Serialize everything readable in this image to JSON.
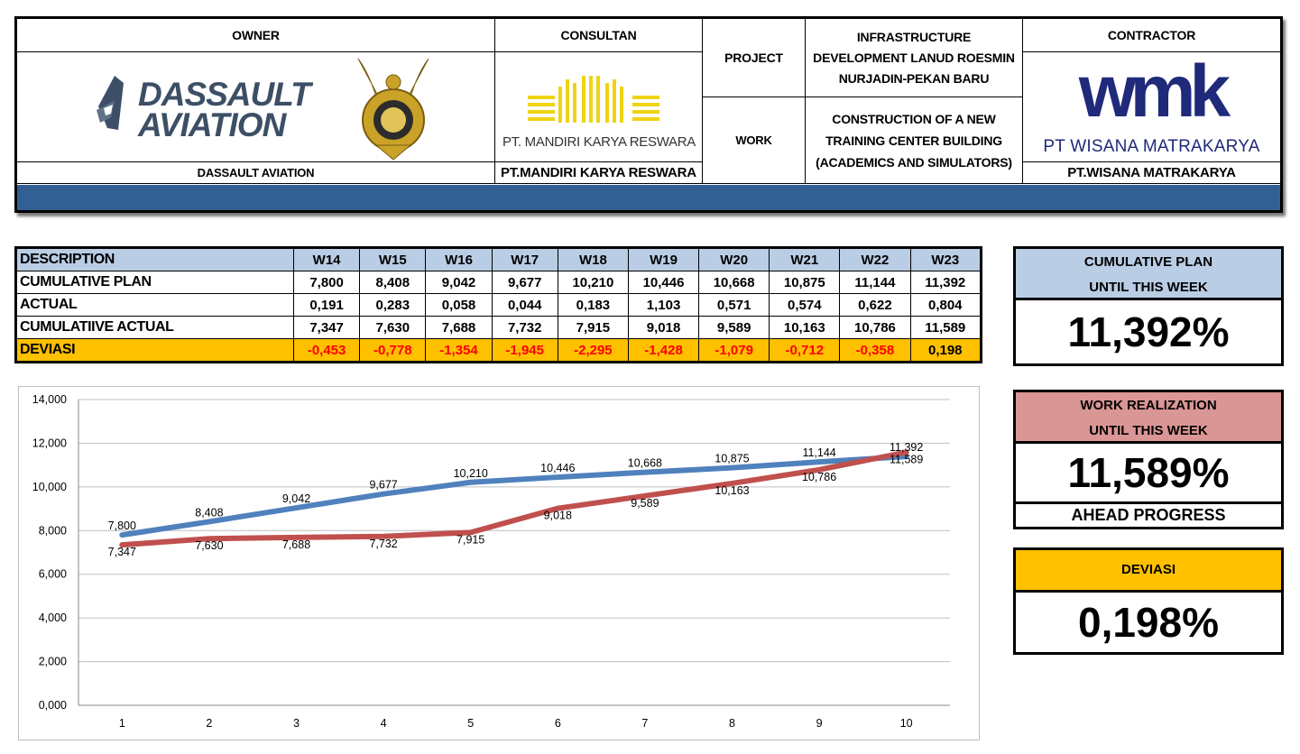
{
  "header": {
    "owner_label": "OWNER",
    "owner_logo_line1": "DASSAULT",
    "owner_logo_line2": "AVIATION",
    "owner_name": "DASSAULT AVIATION",
    "consultant_label": "CONSULTAN",
    "consultant_logo_text": "PT. MANDIRI KARYA RESWARA",
    "consultant_name": "PT.MANDIRI KARYA RESWARA",
    "project_label": "PROJECT",
    "project_value": "INFRASTRUCTURE DEVELOPMENT LANUD ROESMIN NURJADIN-PEKAN BARU",
    "work_label": "WORK",
    "work_value": "CONSTRUCTION OF A NEW TRAINING CENTER BUILDING (ACADEMICS AND SIMULATORS)",
    "contractor_label": "CONTRACTOR",
    "contractor_logo_mark": "wmk",
    "contractor_logo_text": "PT WISANA MATRAKARYA",
    "contractor_name": "PT.WISANA MATRAKARYA"
  },
  "table": {
    "description_label": "DESCRIPTION",
    "weeks": [
      "W14",
      "W15",
      "W16",
      "W17",
      "W18",
      "W19",
      "W20",
      "W21",
      "W22",
      "W23"
    ],
    "rows": [
      {
        "label": "CUMULATIVE PLAN",
        "values": [
          "7,800",
          "8,408",
          "9,042",
          "9,677",
          "10,210",
          "10,446",
          "10,668",
          "10,875",
          "11,144",
          "11,392"
        ]
      },
      {
        "label": "ACTUAL",
        "values": [
          "0,191",
          "0,283",
          "0,058",
          "0,044",
          "0,183",
          "1,103",
          "0,571",
          "0,574",
          "0,622",
          "0,804"
        ]
      },
      {
        "label": "CUMULATIIVE ACTUAL",
        "values": [
          "7,347",
          "7,630",
          "7,688",
          "7,732",
          "7,915",
          "9,018",
          "9,589",
          "10,163",
          "10,786",
          "11,589"
        ]
      },
      {
        "label": "DEVIASI",
        "values": [
          "-0,453",
          "-0,778",
          "-1,354",
          "-1,945",
          "-2,295",
          "-1,428",
          "-1,079",
          "-0,712",
          "-0,358",
          "0,198"
        ]
      }
    ]
  },
  "summary": {
    "plan_caption_1": "CUMULATIVE PLAN",
    "plan_caption_2": "UNTIL THIS WEEK",
    "plan_value": "11,392%",
    "real_caption_1": "WORK REALIZATION",
    "real_caption_2": "UNTIL THIS WEEK",
    "real_value": "11,589%",
    "real_status": "AHEAD PROGRESS",
    "dev_caption": "DEVIASI",
    "dev_value": "0,198%"
  },
  "colors": {
    "header_stripe": "#336093",
    "table_head_bg": "#b9cde5",
    "deviasi_bg": "#ffc000",
    "negative_text": "#ff0000",
    "plan_caption_bg": "#b9cde5",
    "real_caption_bg": "#da9694",
    "dev_caption_bg": "#ffc000",
    "plan_line": "#4f81bd",
    "actual_line": "#c0504d"
  },
  "chart_data": {
    "type": "line",
    "categories": [
      "1",
      "2",
      "3",
      "4",
      "5",
      "6",
      "7",
      "8",
      "9",
      "10"
    ],
    "ylim": [
      0,
      14
    ],
    "yticks": [
      "0,000",
      "2,000",
      "4,000",
      "6,000",
      "8,000",
      "10,000",
      "12,000",
      "14,000"
    ],
    "grid": true,
    "series": [
      {
        "values": [
          7.8,
          8.408,
          9.042,
          9.677,
          10.21,
          10.446,
          10.668,
          10.875,
          11.144,
          11.392
        ],
        "labels": [
          "7,800",
          "8,408",
          "9,042",
          "9,677",
          "10,210",
          "10,446",
          "10,668",
          "10,875",
          "11,144",
          "11,392"
        ],
        "color": "#4f81bd"
      },
      {
        "values": [
          7.347,
          7.63,
          7.688,
          7.732,
          7.915,
          9.018,
          9.589,
          10.163,
          10.786,
          11.589
        ],
        "labels": [
          "7,347",
          "7,630",
          "7,688",
          "7,732",
          "7,915",
          "9,018",
          "9,589",
          "10,163",
          "10,786",
          "11,589"
        ],
        "color": "#c0504d"
      }
    ]
  }
}
